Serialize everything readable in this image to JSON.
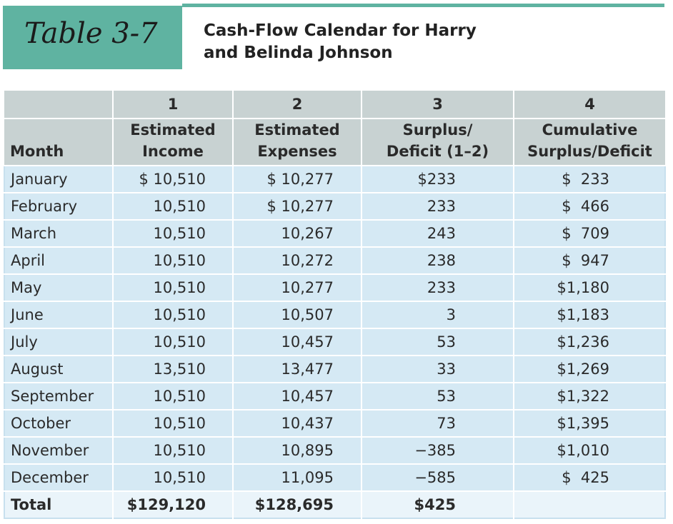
{
  "header": {
    "label": "Table 3-7",
    "title": "Cash-Flow Calendar for Harry and Belinda Johnson"
  },
  "table": {
    "column_numbers": [
      "",
      "1",
      "2",
      "3",
      "4"
    ],
    "columns": [
      [
        "Month"
      ],
      [
        "Estimated",
        "Income"
      ],
      [
        "Estimated",
        "Expenses"
      ],
      [
        "Surplus/",
        "Deficit (1–2)"
      ],
      [
        "Cumulative",
        "Surplus/Deficit"
      ]
    ],
    "rows": [
      [
        "January",
        "$ 10,510",
        "$ 10,277",
        "$233",
        "$  233"
      ],
      [
        "February",
        "10,510",
        "$ 10,277",
        "233",
        "$  466"
      ],
      [
        "March",
        "10,510",
        "10,267",
        "243",
        "$  709"
      ],
      [
        "April",
        "10,510",
        "10,272",
        "238",
        "$  947"
      ],
      [
        "May",
        "10,510",
        "10,277",
        "233",
        "$1,180"
      ],
      [
        "June",
        "10,510",
        "10,507",
        "3",
        "$1,183"
      ],
      [
        "July",
        "10,510",
        "10,457",
        "53",
        "$1,236"
      ],
      [
        "August",
        "13,510",
        "13,477",
        "33",
        "$1,269"
      ],
      [
        "September",
        "10,510",
        "10,457",
        "53",
        "$1,322"
      ],
      [
        "October",
        "10,510",
        "10,437",
        "73",
        "$1,395"
      ],
      [
        "November",
        "10,510",
        "10,895",
        "−385",
        "$1,010"
      ],
      [
        "December",
        "10,510",
        "11,095",
        "−585",
        "$  425"
      ]
    ],
    "total": [
      "Total",
      "$129,120",
      "$128,695",
      "$425",
      ""
    ]
  }
}
